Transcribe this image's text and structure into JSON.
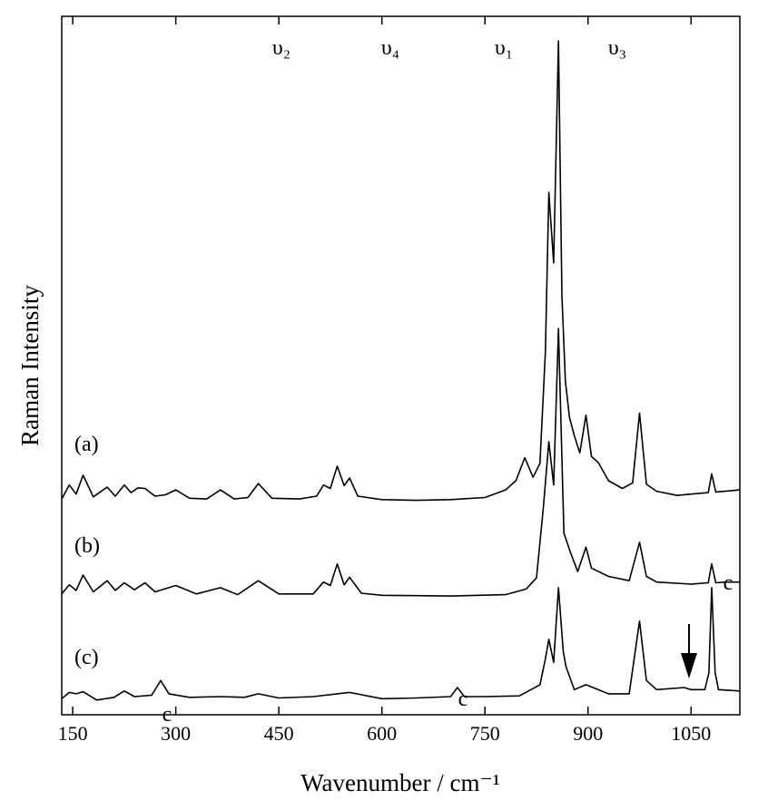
{
  "chart_data": {
    "type": "line",
    "xlabel": "Wavenumber / cm⁻¹",
    "ylabel": "Raman Intensity",
    "xlim": [
      134,
      1121
    ],
    "xticks": [
      150,
      300,
      450,
      600,
      750,
      900,
      1050
    ],
    "ylim": [
      0,
      100
    ],
    "color": "#000000",
    "annotations": [
      "υ₂",
      "υ₄",
      "υ₁",
      "υ₃",
      "c",
      "c",
      "c"
    ],
    "series": [
      {
        "name": "(a)",
        "x": [
          134,
          145,
          155,
          165,
          180,
          200,
          212,
          225,
          235,
          245,
          255,
          270,
          285,
          300,
          320,
          345,
          365,
          385,
          405,
          420,
          440,
          480,
          505,
          515,
          525,
          535,
          545,
          553,
          565,
          600,
          650,
          700,
          750,
          780,
          795,
          808,
          820,
          830,
          838,
          843,
          850,
          857,
          862,
          867,
          873,
          880,
          888,
          897,
          905,
          915,
          930,
          950,
          965,
          975,
          985,
          1000,
          1030,
          1050,
          1075,
          1080,
          1086,
          1100,
          1121
        ],
        "values": [
          30.9,
          32.9,
          31.6,
          34.3,
          31.2,
          32.6,
          31.3,
          32.9,
          31.8,
          32.5,
          32.4,
          31.3,
          31.5,
          32.2,
          31.0,
          30.9,
          32.2,
          30.9,
          31.1,
          33.1,
          31.0,
          30.9,
          31.3,
          32.9,
          32.4,
          35.6,
          32.8,
          33.9,
          31.3,
          30.8,
          30.7,
          30.8,
          31.1,
          32.2,
          33.5,
          36.8,
          34.0,
          36.0,
          52.0,
          74.8,
          64.7,
          96.5,
          60.0,
          47.8,
          42.6,
          40.0,
          37.5,
          42.9,
          37.0,
          36.1,
          33.5,
          32.4,
          33.2,
          43.2,
          33.0,
          32.0,
          31.4,
          31.6,
          31.8,
          34.5,
          31.9,
          32.0,
          32.2
        ]
      },
      {
        "name": "(b)",
        "x": [
          134,
          145,
          155,
          165,
          180,
          200,
          212,
          225,
          240,
          255,
          270,
          300,
          330,
          365,
          390,
          420,
          450,
          500,
          515,
          525,
          535,
          545,
          553,
          570,
          600,
          700,
          780,
          810,
          825,
          835,
          843,
          850,
          857,
          865,
          875,
          885,
          897,
          905,
          930,
          960,
          975,
          985,
          1000,
          1050,
          1075,
          1080,
          1086,
          1100,
          1121
        ],
        "values": [
          17.3,
          18.6,
          17.8,
          20.0,
          17.6,
          19.2,
          17.8,
          18.9,
          17.9,
          18.9,
          17.6,
          18.5,
          17.3,
          18.2,
          17.2,
          19.2,
          17.3,
          17.3,
          19.0,
          18.5,
          21.6,
          18.6,
          19.7,
          17.4,
          17.1,
          17.0,
          17.2,
          18.0,
          19.6,
          29.6,
          39.1,
          32.9,
          55.3,
          26.0,
          23.1,
          20.5,
          24.0,
          21.0,
          19.8,
          19.2,
          24.7,
          19.8,
          19.0,
          18.7,
          18.9,
          21.6,
          18.9,
          19.0,
          19.0
        ]
      },
      {
        "name": "(c)",
        "x": [
          134,
          145,
          155,
          165,
          185,
          210,
          225,
          240,
          265,
          278,
          290,
          320,
          365,
          400,
          420,
          450,
          500,
          535,
          553,
          600,
          650,
          700,
          710,
          720,
          750,
          800,
          830,
          838,
          843,
          850,
          857,
          864,
          868,
          880,
          897,
          930,
          960,
          975,
          985,
          1000,
          1040,
          1050,
          1070,
          1076,
          1080,
          1085,
          1090,
          1121
        ],
        "values": [
          2.3,
          3.2,
          3.0,
          3.3,
          2.1,
          2.5,
          3.4,
          2.6,
          2.8,
          4.9,
          3.0,
          2.5,
          2.6,
          2.5,
          3.0,
          2.4,
          2.6,
          3.0,
          3.2,
          2.3,
          2.4,
          2.6,
          3.9,
          2.6,
          2.6,
          2.7,
          4.3,
          8.0,
          10.8,
          7.5,
          18.2,
          9.0,
          6.9,
          3.6,
          4.3,
          3.0,
          3.0,
          13.4,
          4.9,
          3.6,
          3.9,
          3.6,
          3.6,
          6.0,
          18.2,
          6.0,
          3.6,
          3.4
        ]
      }
    ]
  }
}
